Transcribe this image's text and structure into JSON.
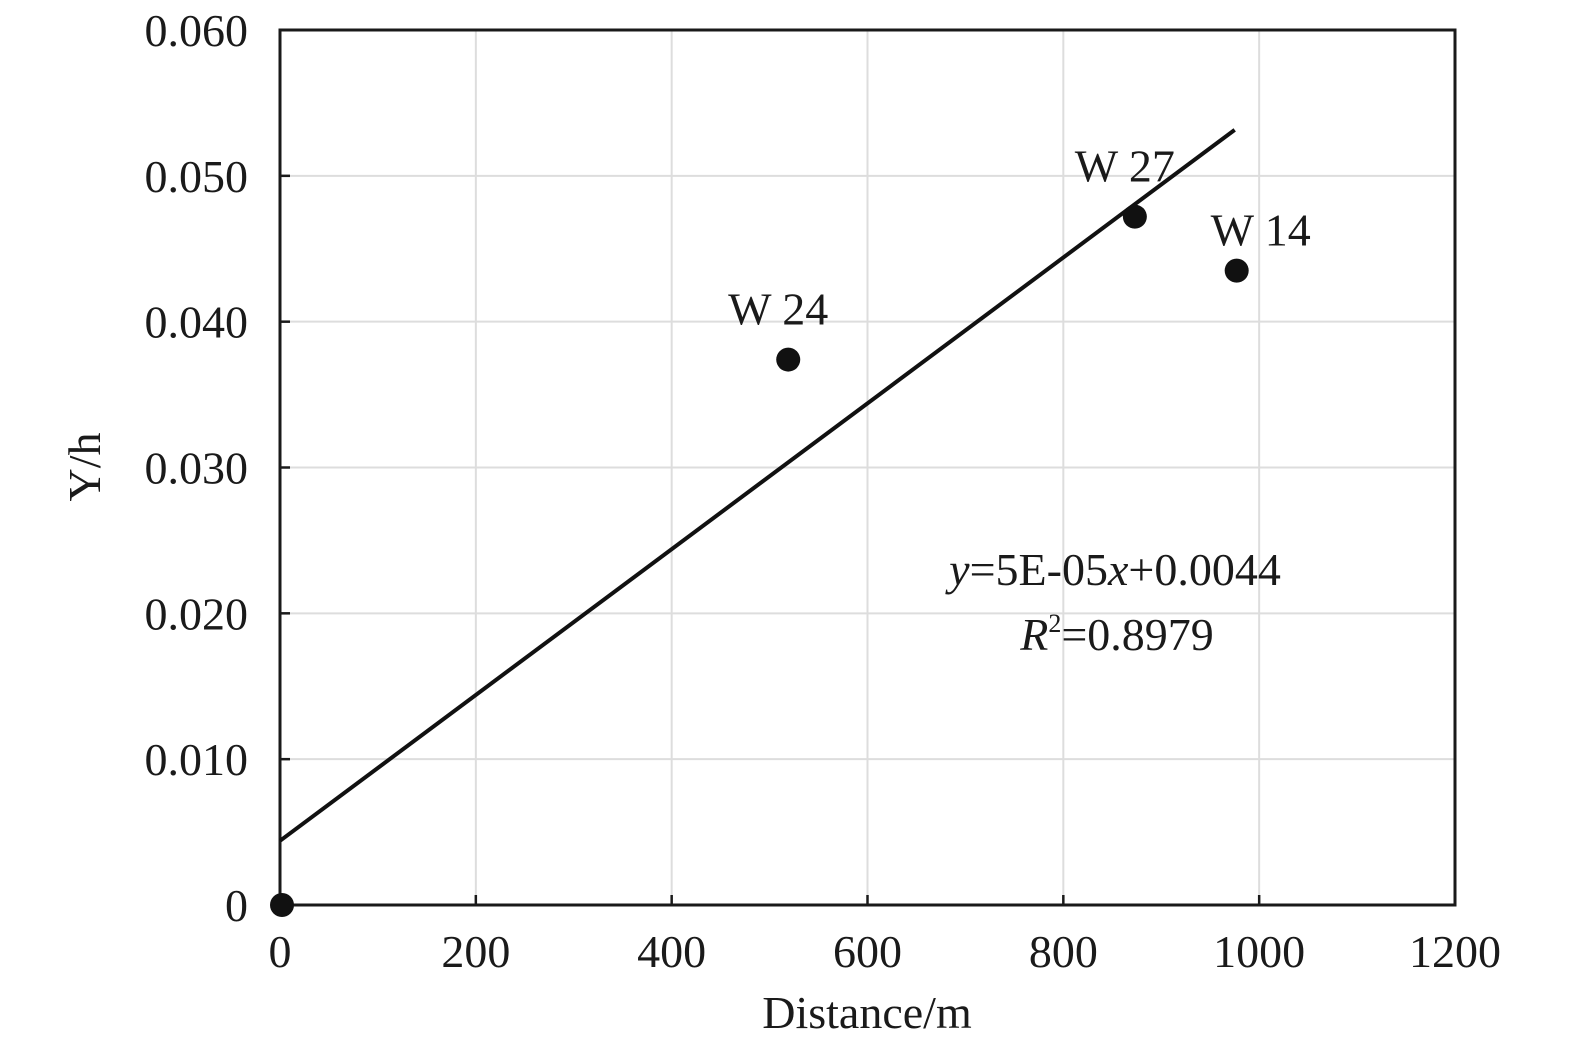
{
  "chart_data": {
    "type": "scatter",
    "title": "",
    "xlabel": "Distance/m",
    "ylabel": "Y/h",
    "xlim": [
      0,
      1200
    ],
    "ylim": [
      0,
      0.06
    ],
    "xticks": [
      0,
      200,
      400,
      600,
      800,
      1000,
      1200
    ],
    "xtick_labels": [
      "0",
      "200",
      "400",
      "600",
      "800",
      "1000",
      "1200"
    ],
    "yticks": [
      0,
      0.01,
      0.02,
      0.03,
      0.04,
      0.05,
      0.06
    ],
    "ytick_labels": [
      "0",
      "0.010",
      "0.020",
      "0.030",
      "0.040",
      "0.050",
      "0.060"
    ],
    "grid": true,
    "points": [
      {
        "label": "",
        "x": 0,
        "y": 0
      },
      {
        "label": "W 24",
        "x": 517,
        "y": 0.0374
      },
      {
        "label": "W 27",
        "x": 871,
        "y": 0.0472
      },
      {
        "label": "W 14",
        "x": 975,
        "y": 0.0435
      }
    ],
    "trendline": {
      "slope": 5e-05,
      "intercept": 0.0044,
      "x_range": [
        0,
        975
      ],
      "equation_parts": {
        "y": "y",
        "mid": "=5E-05",
        "x": "x",
        "tail": "+0.0044"
      },
      "r2_parts": {
        "R": "R",
        "sup": "2",
        "tail": "=0.8979"
      }
    },
    "colors": {
      "marker": "#111111",
      "line": "#111111",
      "grid": "#dddddd",
      "axis": "#1a1a1a"
    }
  }
}
